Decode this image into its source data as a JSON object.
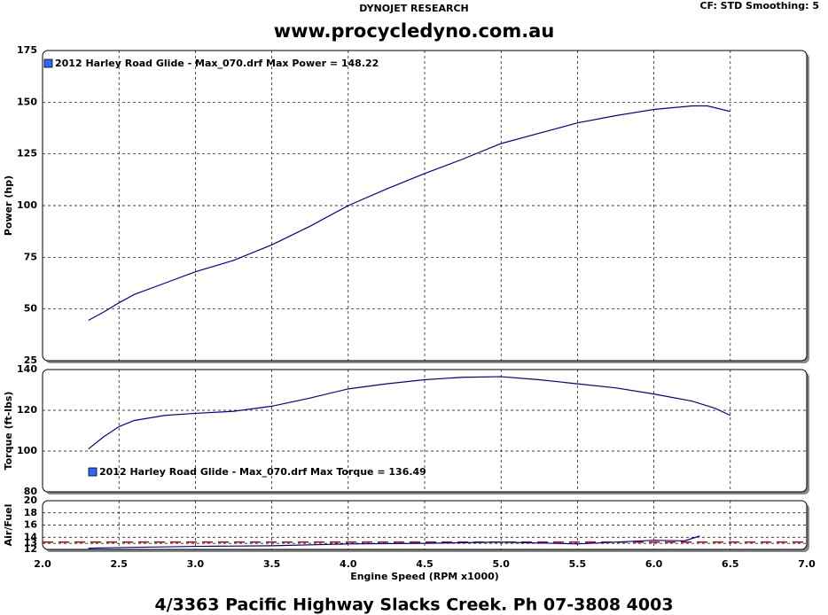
{
  "header": {
    "brand": "DYNOJET RESEARCH",
    "settings": "CF: STD  Smoothing: 5",
    "website": "www.procycledyno.com.au"
  },
  "footer": "4/3363 Pacific Highway Slacks Creek. Ph 07-3808 4003",
  "chart_data": [
    {
      "type": "line",
      "ylabel": "Power (hp)",
      "ylim": [
        25,
        175
      ],
      "yticks": [
        25,
        50,
        75,
        100,
        125,
        150,
        175
      ],
      "grid": true,
      "legend": "top-left",
      "x": [
        2.3,
        2.4,
        2.5,
        2.6,
        2.8,
        3.0,
        3.25,
        3.5,
        3.75,
        4.0,
        4.25,
        4.5,
        4.75,
        5.0,
        5.25,
        5.5,
        5.75,
        6.0,
        6.25,
        6.35,
        6.5
      ],
      "series": [
        {
          "name": "2012 Harley Road Glide - Max_070.drf Max Power = 148.22",
          "color": "#000099",
          "values": [
            44.5,
            48.5,
            53,
            57,
            62.5,
            68,
            73.5,
            81,
            90,
            100,
            108,
            115.5,
            122.5,
            130,
            135,
            140,
            143.5,
            146.5,
            148.2,
            148.2,
            145.5
          ]
        }
      ]
    },
    {
      "type": "line",
      "ylabel": "Torque (ft-lbs)",
      "ylim": [
        80,
        140
      ],
      "yticks": [
        80,
        100,
        120,
        140
      ],
      "grid": true,
      "legend": "bottom-left",
      "x": [
        2.3,
        2.4,
        2.5,
        2.6,
        2.8,
        3.0,
        3.25,
        3.5,
        3.75,
        4.0,
        4.25,
        4.5,
        4.75,
        5.0,
        5.25,
        5.5,
        5.75,
        6.0,
        6.25,
        6.4,
        6.5
      ],
      "series": [
        {
          "name": "2012 Harley Road Glide - Max_070.drf Max Torque = 136.49",
          "color": "#000099",
          "values": [
            101,
            107,
            112,
            115,
            117.5,
            118.5,
            119.5,
            122,
            126,
            130.5,
            133,
            135,
            136.2,
            136.5,
            135,
            133,
            131,
            128,
            124.5,
            121,
            117.5
          ]
        }
      ]
    },
    {
      "type": "line",
      "ylabel": "Air/Fuel",
      "xlabel": "Engine Speed (RPM x1000)",
      "ylim": [
        12,
        20
      ],
      "yticks": [
        12,
        13,
        14,
        16,
        18,
        20
      ],
      "grid": true,
      "xlim": [
        2,
        7
      ],
      "xticks": [
        {
          "value": 2,
          "label": "2.0"
        },
        {
          "value": 2.5,
          "label": "2.5"
        },
        {
          "value": 3,
          "label": "3.0"
        },
        {
          "value": 3.5,
          "label": "3.5"
        },
        {
          "value": 4,
          "label": "4.0"
        },
        {
          "value": 4.5,
          "label": "4.5"
        },
        {
          "value": 5,
          "label": "5.0"
        },
        {
          "value": 5.5,
          "label": "5.5"
        },
        {
          "value": 6,
          "label": "6.0"
        },
        {
          "value": 6.5,
          "label": "6.5"
        },
        {
          "value": 7,
          "label": "7.0"
        }
      ],
      "reference_line": {
        "value": 13.2,
        "color": "#cc0000"
      },
      "x": [
        2.3,
        2.5,
        3.0,
        3.5,
        4.0,
        4.5,
        5.0,
        5.5,
        6.0,
        6.2,
        6.3
      ],
      "series": [
        {
          "color": "#000099",
          "values": [
            12.2,
            12.3,
            12.5,
            12.6,
            12.9,
            13.0,
            13.2,
            12.9,
            13.5,
            13.4,
            14.2
          ]
        }
      ]
    }
  ]
}
